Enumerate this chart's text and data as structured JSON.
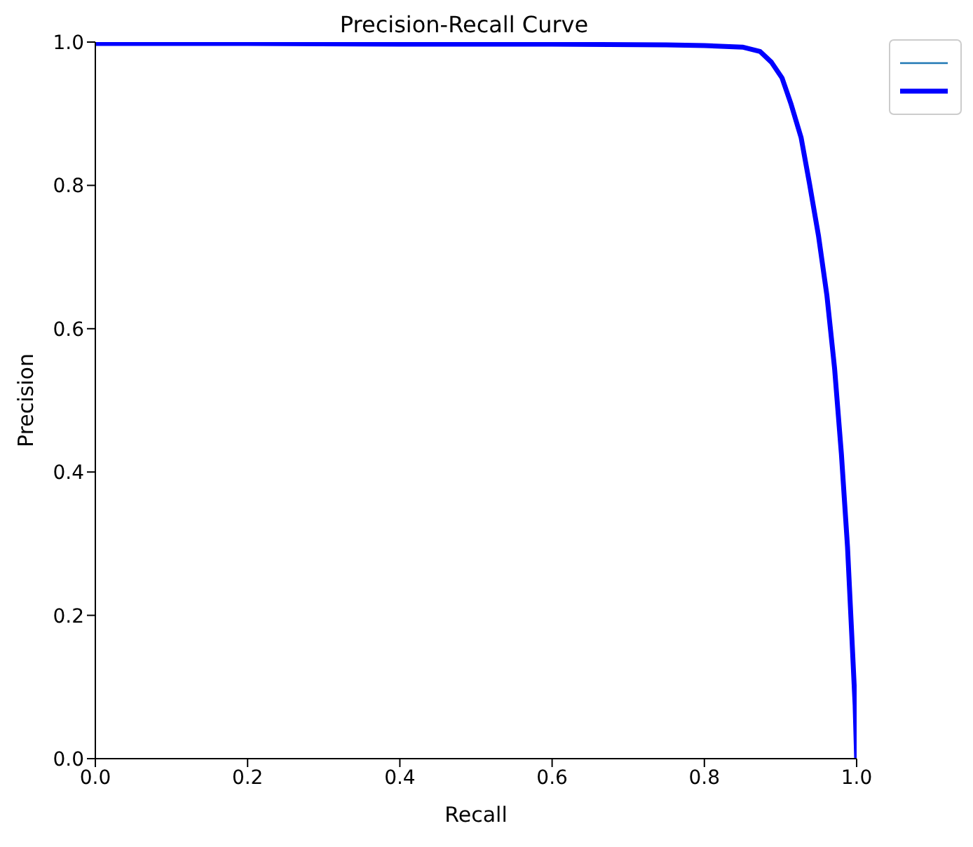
{
  "chart_data": {
    "type": "line",
    "title": "Precision-Recall Curve",
    "xlabel": "Recall",
    "ylabel": "Precision",
    "x": [
      0,
      0.2,
      0.4,
      0.6,
      0.75,
      0.8,
      0.85,
      0.873,
      0.888,
      0.902,
      0.914,
      0.927,
      0.938,
      0.95,
      0.961,
      0.971,
      0.98,
      0.988,
      0.993,
      0.998,
      1.0
    ],
    "series": [
      {
        "color": "#0000ff",
        "values": [
          0.998,
          0.998,
          0.997,
          0.997,
          0.996,
          0.995,
          0.993,
          0.987,
          0.972,
          0.95,
          0.913,
          0.867,
          0.803,
          0.729,
          0.646,
          0.545,
          0.425,
          0.296,
          0.186,
          0.075,
          0
        ]
      }
    ],
    "xlim": [
      0,
      1
    ],
    "ylim": [
      0,
      1
    ],
    "xticks": [
      {
        "value": 0,
        "label": "0.0"
      },
      0.2,
      0.4,
      0.6,
      0.8,
      {
        "value": 1,
        "label": "1.0"
      }
    ],
    "yticks": [
      {
        "value": 0,
        "label": "0.0"
      },
      0.2,
      0.4,
      0.6,
      0.8,
      {
        "value": 1,
        "label": "1.0"
      }
    ],
    "marker": "none",
    "line_style": "solid"
  }
}
